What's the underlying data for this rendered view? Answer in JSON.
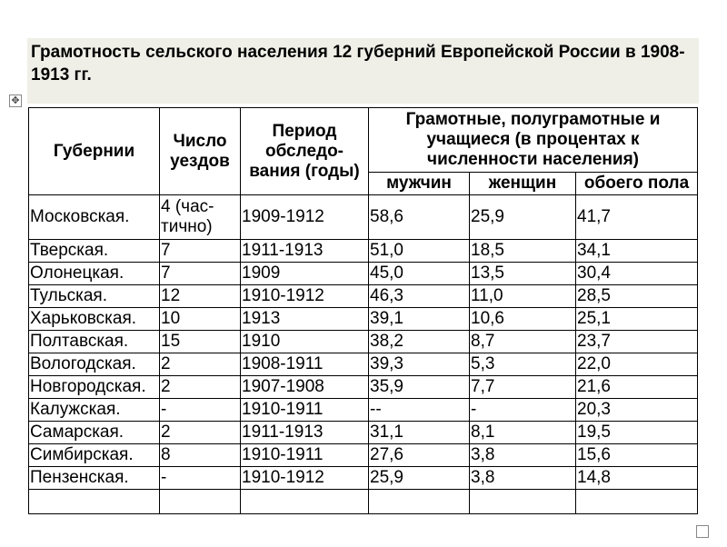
{
  "title": "Грамотность сельского населения 12 губерний Европейской России в 1908-1913 гг.",
  "icons": {
    "move_handle": "move-icon",
    "resize_handle": "resize-icon"
  },
  "table": {
    "headers": {
      "province": "Губернии",
      "counties": "Число уездов",
      "period": "Период обследо-вания (годы)",
      "literate": "Грамотные, полуграмотные и учащиеся (в процентах к численности населения)",
      "men": "мужчин",
      "women": "женщин",
      "both": "обоего пола"
    },
    "rows": [
      {
        "province": "Московская.",
        "counties": "4 (час-тично)",
        "period": "1909-1912",
        "men": "58,6",
        "women": "25,9",
        "both": "41,7"
      },
      {
        "province": "Тверская.",
        "counties": "7",
        "period": "1911-1913",
        "men": "51,0",
        "women": "18,5",
        "both": "34,1"
      },
      {
        "province": "Олонецкая.",
        "counties": "7",
        "period": "1909",
        "men": "45,0",
        "women": "13,5",
        "both": "30,4"
      },
      {
        "province": "Тульская.",
        "counties": "12",
        "period": "1910-1912",
        "men": "46,3",
        "women": "11,0",
        "both": "28,5"
      },
      {
        "province": "Харьковская.",
        "counties": "10",
        "period": "1913",
        "men": "39,1",
        "women": "10,6",
        "both": "25,1"
      },
      {
        "province": "Полтавская.",
        "counties": "15",
        "period": "1910",
        "men": "38,2",
        "women": "8,7",
        "both": "23,7"
      },
      {
        "province": "Вологодская.",
        "counties": "2",
        "period": "1908-1911",
        "men": "39,3",
        "women": "5,3",
        "both": "22,0"
      },
      {
        "province": "Новгородская.",
        "counties": "2",
        "period": "1907-1908",
        "men": "35,9",
        "women": "7,7",
        "both": "21,6"
      },
      {
        "province": "Калужская.",
        "counties": "-",
        "period": "1910-1911",
        "men": "--",
        "women": "-",
        "both": "20,3"
      },
      {
        "province": "Самарская.",
        "counties": "2",
        "period": "1911-1913",
        "men": "31,1",
        "women": "8,1",
        "both": "19,5"
      },
      {
        "province": "Симбирская.",
        "counties": "8",
        "period": "1910-1911",
        "men": "27,6",
        "women": "3,8",
        "both": "15,6"
      },
      {
        "province": "Пензенская.",
        "counties": "-",
        "period": "1910-1912",
        "men": "25,9",
        "women": "3,8",
        "both": "14,8"
      }
    ]
  }
}
